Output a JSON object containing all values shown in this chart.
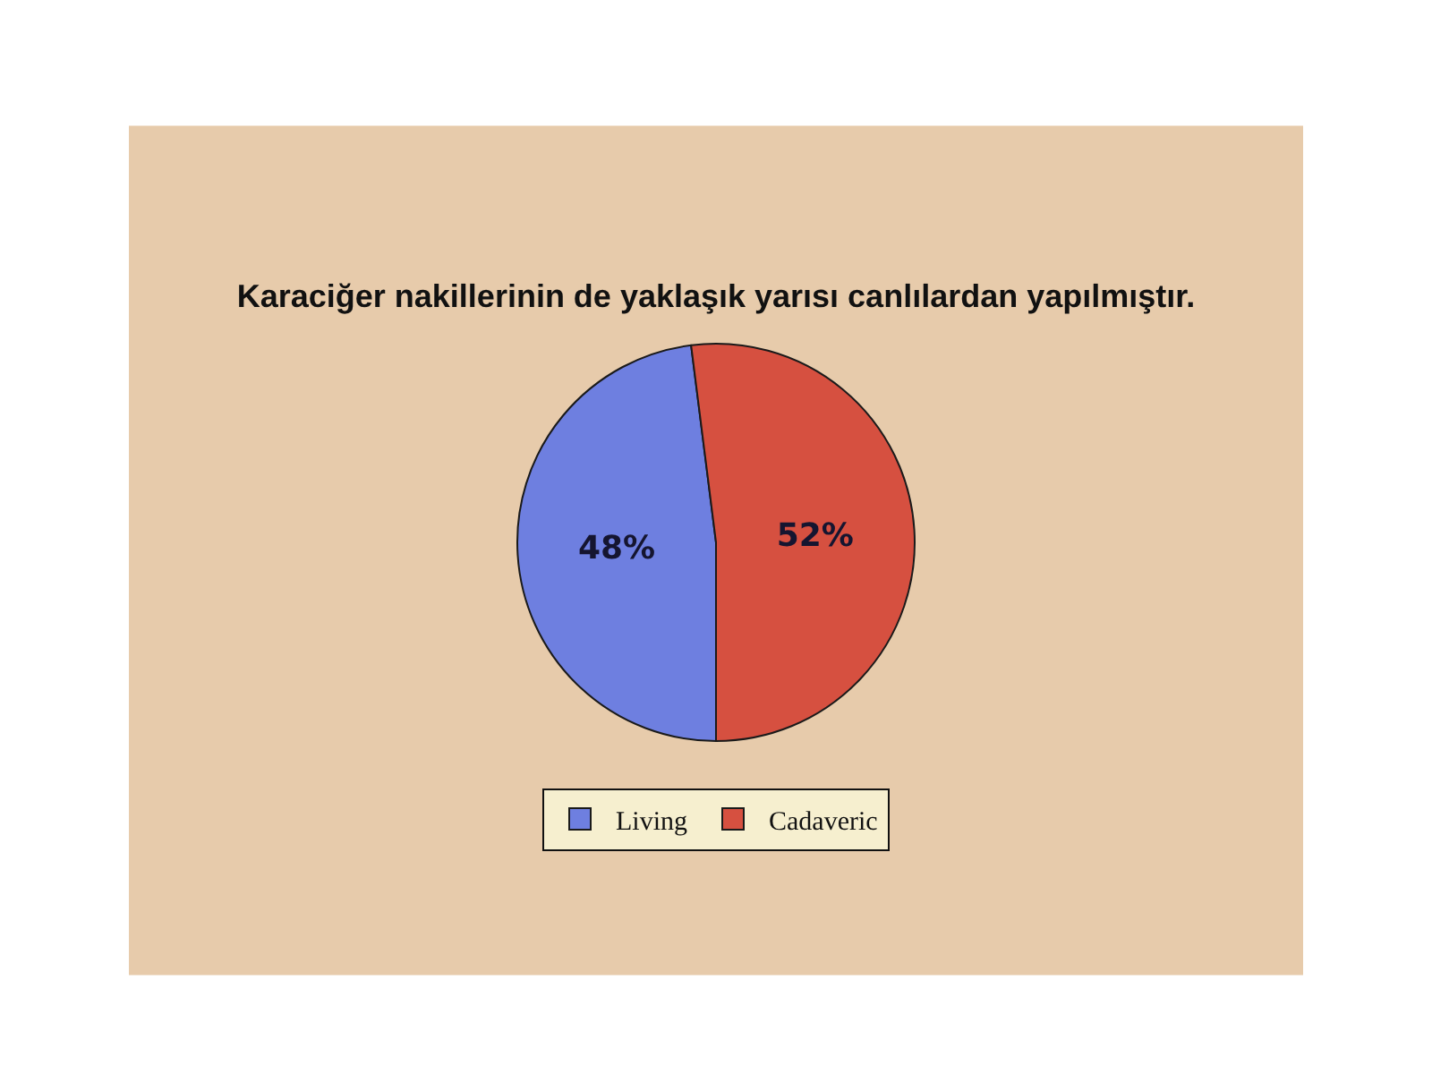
{
  "chart_data": {
    "type": "pie",
    "title": "Karaciğer nakillerinin de yaklaşık yarısı canlılardan yapılmıştır.",
    "categories": [
      "Living",
      "Cadaveric"
    ],
    "values": [
      48,
      52
    ],
    "value_labels": [
      "48%",
      "52%"
    ],
    "colors": [
      "#6e7fe0",
      "#d65040"
    ],
    "legend": "bottom"
  }
}
